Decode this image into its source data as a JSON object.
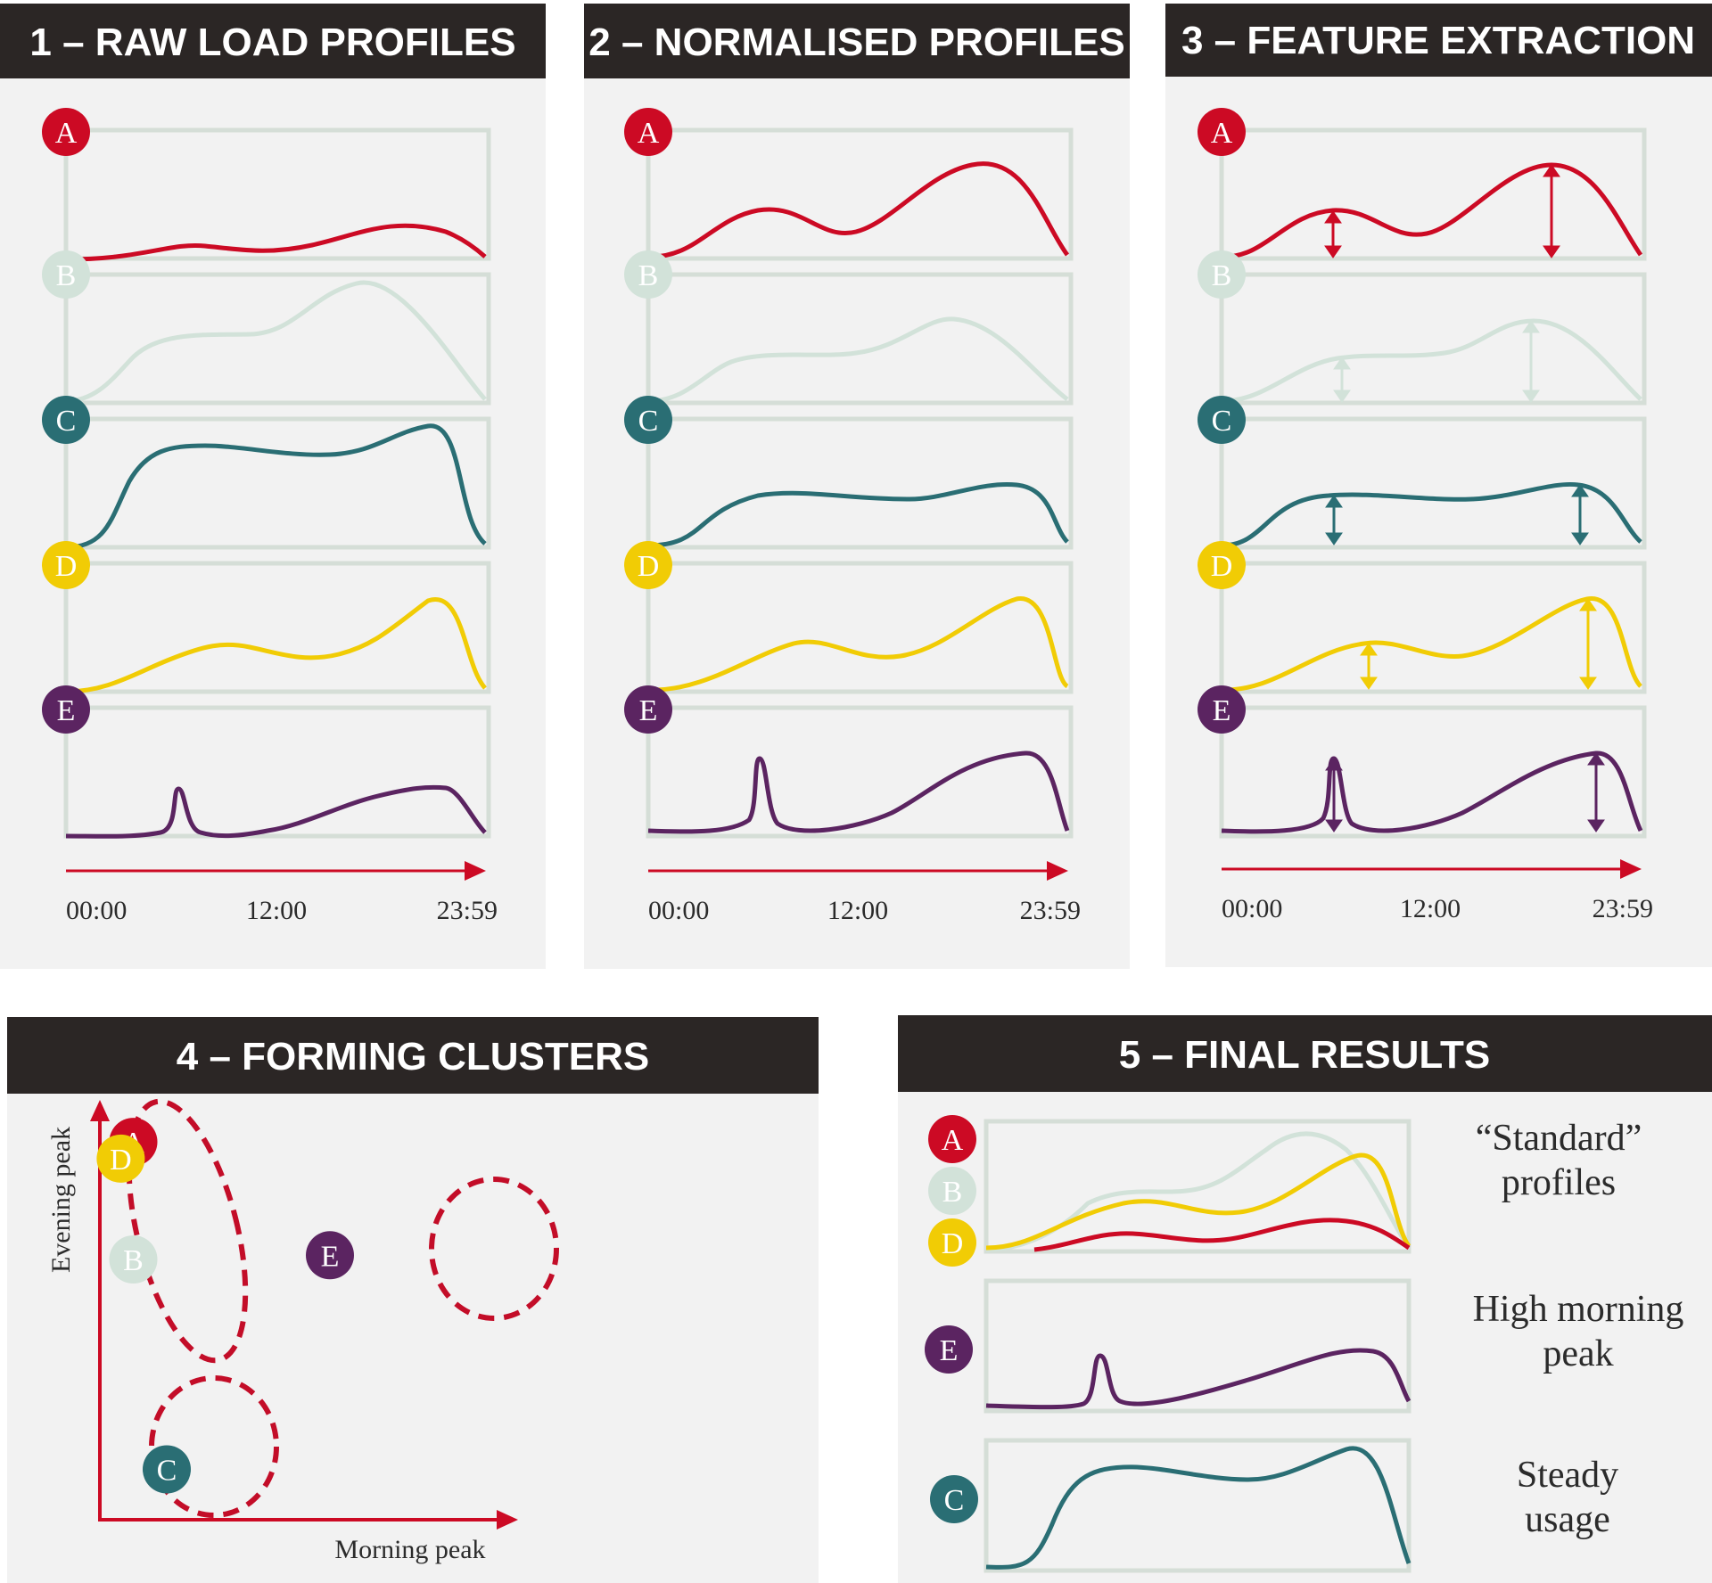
{
  "panels": [
    {
      "id": "raw",
      "header": "1 – RAW LOAD PROFILES",
      "time_labels": [
        "00:00",
        "12:00",
        "23:59"
      ]
    },
    {
      "id": "normalised",
      "header": "2 – NORMALISED PROFILES",
      "time_labels": [
        "00:00",
        "12:00",
        "23:59"
      ]
    },
    {
      "id": "features",
      "header": "3 – FEATURE EXTRACTION",
      "time_labels": [
        "00:00",
        "12:00",
        "23:59"
      ]
    },
    {
      "id": "clusters",
      "header": "4 – FORMING CLUSTERS",
      "xlabel": "Morning peak",
      "ylabel": "Evening peak"
    },
    {
      "id": "results",
      "header": "5 – FINAL RESULTS"
    }
  ],
  "profiles": [
    {
      "id": "A",
      "label": "A",
      "color": "#cc0a24"
    },
    {
      "id": "B",
      "label": "B",
      "color": "#d2e2d9"
    },
    {
      "id": "C",
      "label": "C",
      "color": "#2a6e74"
    },
    {
      "id": "D",
      "label": "D",
      "color": "#f1cc05"
    },
    {
      "id": "E",
      "label": "E",
      "color": "#5b2461"
    }
  ],
  "cluster_points": [
    {
      "label": "A",
      "morning_peak": 0.08,
      "evening_peak": 0.9
    },
    {
      "label": "D",
      "morning_peak": 0.05,
      "evening_peak": 0.86
    },
    {
      "label": "B",
      "morning_peak": 0.08,
      "evening_peak": 0.62
    },
    {
      "label": "E",
      "morning_peak": 0.55,
      "evening_peak": 0.63
    },
    {
      "label": "C",
      "morning_peak": 0.16,
      "evening_peak": 0.12
    }
  ],
  "results": [
    {
      "labels": [
        "A",
        "B",
        "D"
      ],
      "text": [
        "“Standard”",
        "profiles"
      ]
    },
    {
      "labels": [
        "E"
      ],
      "text": [
        "High morning",
        "peak"
      ]
    },
    {
      "labels": [
        "C"
      ],
      "text": [
        "Steady",
        "usage"
      ]
    }
  ],
  "colors": {
    "header_bg": "#2b2625",
    "panel_bg": "#f2f2f2",
    "frame": "#d5ded7",
    "accent": "#cc0a24",
    "dashed": "#c30d28"
  }
}
